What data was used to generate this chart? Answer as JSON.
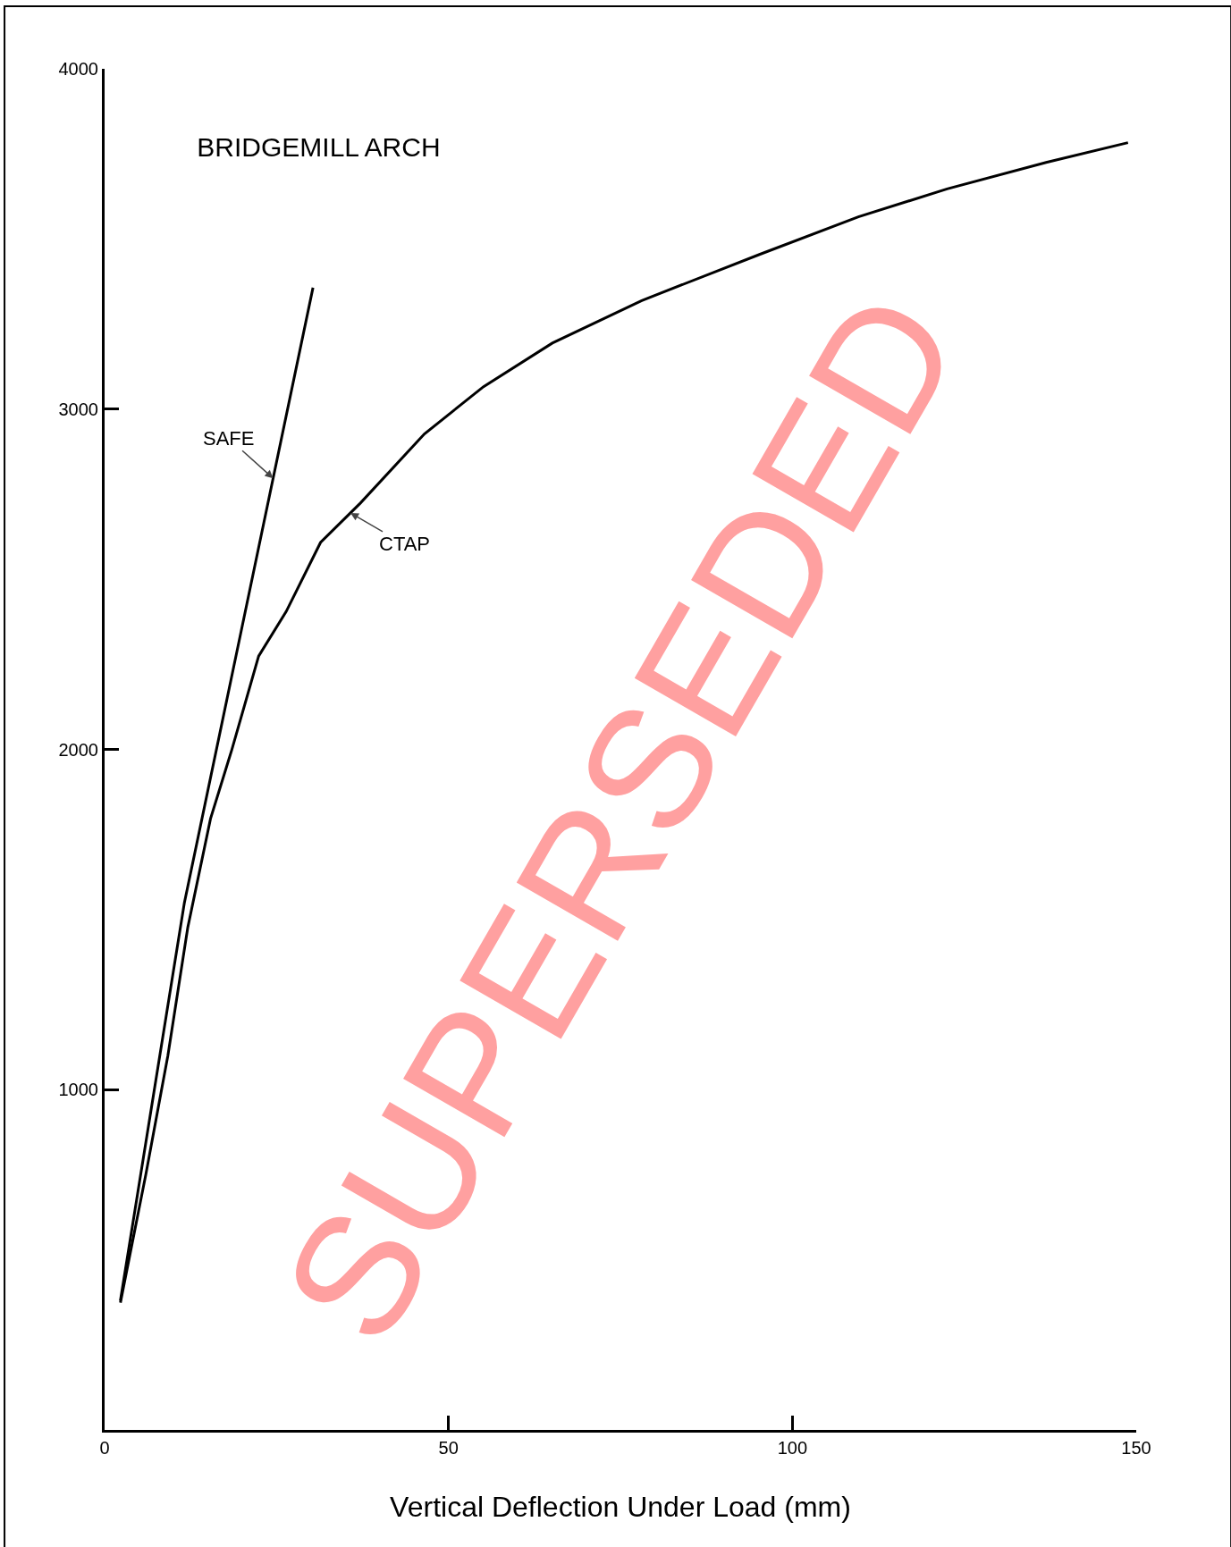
{
  "chart_data": {
    "type": "line",
    "title": "BRIDGEMILL ARCH",
    "xlabel": "Vertical Deflection Under Load (mm)",
    "annotations": [
      "SUPERSEDED"
    ],
    "series": [
      {
        "name": "SAFE",
        "color": "#000000",
        "x": [
          2.3,
          11.6,
          30.3
        ],
        "values": [
          380,
          1549,
          3357
        ]
      },
      {
        "name": "CTAP",
        "color": "#000000",
        "x": [
          2.3,
          6.0,
          9.2,
          12.1,
          15.4,
          18.5,
          22.4,
          26.4,
          31.4,
          37.2,
          46.5,
          55.1,
          65.1,
          78.1,
          95.3,
          109.6,
          122.5,
          136.9,
          148.8
        ],
        "values": [
          374,
          751,
          1100,
          1477,
          1796,
          1999,
          2274,
          2405,
          2608,
          2724,
          2927,
          3066,
          3194,
          3319,
          3455,
          3565,
          3647,
          3725,
          3783
        ]
      }
    ],
    "xlim": [
      0,
      150
    ],
    "xticks": [
      0,
      50,
      100,
      150
    ],
    "ylim": [
      0,
      4000
    ],
    "yticks": [
      {
        "value": 0,
        "label": null
      },
      1000,
      2000,
      3000,
      4000
    ],
    "grid": false,
    "legend": false,
    "marker": "none",
    "line_style": "solid"
  }
}
